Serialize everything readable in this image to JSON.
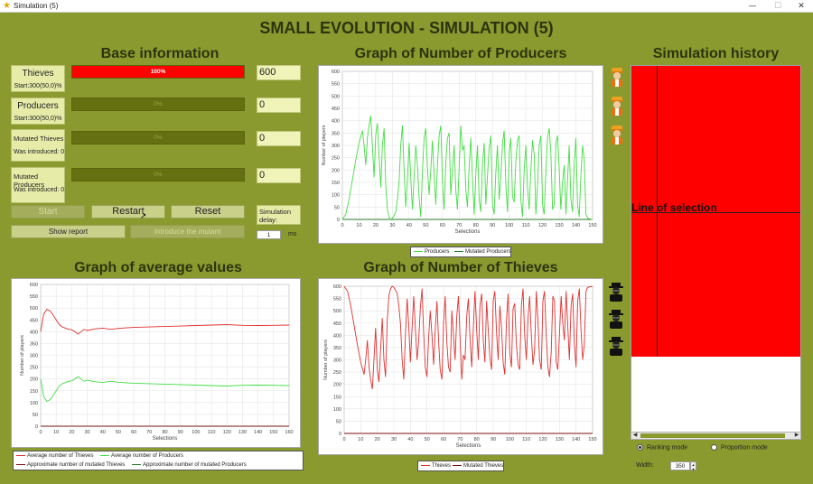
{
  "window": {
    "title": "Simulation (5)",
    "minimize": "—",
    "maximize": "☐",
    "close": "✕"
  },
  "main_title": "SMALL EVOLUTION - SIMULATION (5)",
  "base_info": {
    "title": "Base information",
    "rows": [
      {
        "label": "Thieves",
        "sub": "Start:300(50,0)%",
        "percent_text": "100%",
        "fill": 1.0,
        "value": "600"
      },
      {
        "label": "Producers",
        "sub": "Start:300(50,0)%",
        "percent_text": "0%",
        "fill": 0,
        "value": "0"
      },
      {
        "label": "Mutated Thieves",
        "sub": "Was introduced: 0",
        "percent_text": "0%",
        "fill": 0,
        "value": "0"
      },
      {
        "label": "Mutated Producers",
        "sub": "Was introduced: 0",
        "percent_text": "0%",
        "fill": 0,
        "value": "0"
      }
    ]
  },
  "controls": {
    "start": "Start",
    "restart": "Restart",
    "reset": "Reset",
    "show_report": "Show report",
    "introduce_mutant": "Introduce the mutant",
    "delay_label_1": "Simulation",
    "delay_label_2": "delay:",
    "delay_value": "1",
    "delay_unit": "ms"
  },
  "history": {
    "title": "Simulation history",
    "selection_label": "Line of selection",
    "ranking_mode": "Ranking mode",
    "proportion_mode": "Proportion mode",
    "width_label": "Width:",
    "width_value": "350"
  },
  "colors": {
    "thieves": "#e03030",
    "producers": "#44dd44",
    "history_fill": "#ff0000"
  },
  "icons": {
    "producer": "producer-icon",
    "thief": "thief-icon"
  },
  "chart_data": [
    {
      "id": "producers",
      "type": "line",
      "title": "Graph of Number of Producers",
      "xlabel": "Selections",
      "ylabel": "Number of players",
      "xlim": [
        0,
        150
      ],
      "ylim": [
        0,
        600
      ],
      "xticks": [
        "0",
        "10",
        "20",
        "30",
        "40",
        "50",
        "60",
        "70",
        "80",
        "90",
        "100",
        "110",
        "120",
        "130",
        "140",
        "150"
      ],
      "yticks": [
        "0",
        "50",
        "100",
        "150",
        "200",
        "250",
        "300",
        "350",
        "400",
        "450",
        "500",
        "550",
        "600"
      ],
      "series": [
        {
          "name": "Producers",
          "color": "#44dd44",
          "x": [
            0,
            2,
            4,
            6,
            8,
            10,
            12,
            13,
            14,
            15,
            16,
            17,
            18,
            19,
            20,
            21,
            22,
            23,
            24,
            25,
            26,
            27,
            28,
            29,
            30,
            31,
            32,
            33,
            34,
            35,
            36,
            37,
            38,
            39,
            40,
            41,
            42,
            43,
            44,
            45,
            46,
            47,
            48,
            49,
            50,
            51,
            52,
            53,
            54,
            55,
            56,
            57,
            58,
            59,
            60,
            61,
            62,
            63,
            64,
            65,
            66,
            67,
            68,
            69,
            70,
            71,
            72,
            73,
            74,
            75,
            76,
            77,
            78,
            79,
            80,
            81,
            82,
            83,
            84,
            85,
            86,
            87,
            88,
            89,
            90,
            91,
            92,
            93,
            94,
            95,
            96,
            97,
            98,
            99,
            100,
            101,
            102,
            103,
            104,
            105,
            106,
            107,
            108,
            109,
            110,
            111,
            112,
            113,
            114,
            115,
            116,
            117,
            118,
            119,
            120,
            121,
            122,
            123,
            124,
            125,
            126,
            127,
            128,
            129,
            130,
            131,
            132,
            133,
            134,
            135,
            136,
            137,
            138,
            139,
            140,
            141,
            142,
            143,
            144,
            145,
            146,
            147,
            148,
            149,
            150
          ],
          "y": [
            0,
            20,
            80,
            160,
            240,
            310,
            360,
            300,
            220,
            330,
            380,
            420,
            300,
            170,
            340,
            390,
            260,
            130,
            300,
            370,
            140,
            40,
            10,
            0,
            5,
            15,
            30,
            80,
            150,
            300,
            380,
            200,
            50,
            160,
            310,
            170,
            40,
            170,
            300,
            220,
            90,
            10,
            190,
            330,
            370,
            210,
            100,
            200,
            320,
            180,
            60,
            220,
            340,
            380,
            150,
            40,
            230,
            330,
            350,
            100,
            200,
            300,
            120,
            40,
            210,
            380,
            280,
            300,
            120,
            50,
            210,
            330,
            170,
            20,
            180,
            300,
            80,
            30,
            220,
            310,
            60,
            180,
            290,
            340,
            60,
            20,
            190,
            300,
            80,
            170,
            310,
            360,
            140,
            30,
            270,
            330,
            90,
            70,
            240,
            320,
            340,
            80,
            10,
            200,
            300,
            130,
            40,
            200,
            320,
            260,
            20,
            140,
            300,
            340,
            60,
            20,
            200,
            330,
            370,
            270,
            40,
            60,
            310,
            340,
            200,
            40,
            150,
            220,
            20,
            160,
            300,
            80,
            30,
            230,
            330,
            60,
            10,
            180,
            300,
            240,
            20,
            5,
            3,
            1,
            0
          ]
        },
        {
          "name": "Mutated Producers",
          "color": "#2a7a2a",
          "x": [
            0,
            150
          ],
          "y": [
            0,
            0
          ]
        }
      ]
    },
    {
      "id": "averages",
      "type": "line",
      "title": "Graph of average values",
      "xlabel": "Selections",
      "ylabel": "Number of players",
      "xlim": [
        0,
        160
      ],
      "ylim": [
        0,
        600
      ],
      "xticks": [
        "0",
        "10",
        "20",
        "30",
        "40",
        "50",
        "60",
        "70",
        "80",
        "90",
        "100",
        "110",
        "120",
        "130",
        "140",
        "150",
        "160"
      ],
      "yticks": [
        "0",
        "50",
        "100",
        "150",
        "200",
        "250",
        "300",
        "350",
        "400",
        "450",
        "500",
        "550",
        "600"
      ],
      "series": [
        {
          "name": "Average number of Thieves",
          "color": "#e03030",
          "x": [
            0,
            2,
            4,
            6,
            8,
            10,
            12,
            14,
            16,
            18,
            20,
            22,
            24,
            26,
            28,
            30,
            35,
            40,
            45,
            50,
            55,
            60,
            70,
            80,
            90,
            100,
            110,
            120,
            130,
            140,
            150,
            160
          ],
          "y": [
            400,
            475,
            495,
            488,
            470,
            450,
            430,
            420,
            415,
            410,
            408,
            400,
            390,
            400,
            410,
            405,
            412,
            415,
            410,
            414,
            416,
            418,
            420,
            422,
            424,
            426,
            428,
            430,
            427,
            426,
            427,
            428
          ]
        },
        {
          "name": "Average number of Producers",
          "color": "#44dd44",
          "x": [
            0,
            2,
            4,
            6,
            8,
            10,
            12,
            14,
            16,
            18,
            20,
            22,
            24,
            26,
            28,
            30,
            35,
            40,
            45,
            50,
            55,
            60,
            70,
            80,
            90,
            100,
            110,
            120,
            130,
            140,
            150,
            160
          ],
          "y": [
            200,
            125,
            105,
            112,
            130,
            150,
            170,
            180,
            185,
            190,
            192,
            200,
            210,
            200,
            190,
            195,
            188,
            185,
            190,
            186,
            184,
            182,
            180,
            178,
            176,
            174,
            172,
            170,
            173,
            174,
            173,
            172
          ]
        },
        {
          "name": "Approximate number of mutated Thieves",
          "color": "#7a1010",
          "x": [
            0,
            160
          ],
          "y": [
            0,
            0
          ]
        },
        {
          "name": "Approximate number of mutated Producers",
          "color": "#2a7a2a",
          "x": [
            0,
            160
          ],
          "y": [
            0,
            0
          ]
        }
      ]
    },
    {
      "id": "thieves",
      "type": "line",
      "title": "Graph of Number of Thieves",
      "xlabel": "Selections",
      "ylabel": "Number of players",
      "xlim": [
        0,
        150
      ],
      "ylim": [
        0,
        600
      ],
      "xticks": [
        "0",
        "10",
        "20",
        "30",
        "40",
        "50",
        "60",
        "70",
        "80",
        "90",
        "100",
        "110",
        "120",
        "130",
        "140",
        "150"
      ],
      "yticks": [
        "0",
        "50",
        "100",
        "150",
        "200",
        "250",
        "300",
        "350",
        "400",
        "450",
        "500",
        "550",
        "600"
      ],
      "series": [
        {
          "name": "Thieves",
          "color": "#e03030",
          "x": [
            0,
            2,
            4,
            6,
            8,
            10,
            12,
            13,
            14,
            15,
            16,
            17,
            18,
            19,
            20,
            21,
            22,
            23,
            24,
            25,
            26,
            27,
            28,
            29,
            30,
            31,
            32,
            33,
            34,
            35,
            36,
            37,
            38,
            39,
            40,
            41,
            42,
            43,
            44,
            45,
            46,
            47,
            48,
            49,
            50,
            51,
            52,
            53,
            54,
            55,
            56,
            57,
            58,
            59,
            60,
            61,
            62,
            63,
            64,
            65,
            66,
            67,
            68,
            69,
            70,
            71,
            72,
            73,
            74,
            75,
            76,
            77,
            78,
            79,
            80,
            81,
            82,
            83,
            84,
            85,
            86,
            87,
            88,
            89,
            90,
            91,
            92,
            93,
            94,
            95,
            96,
            97,
            98,
            99,
            100,
            101,
            102,
            103,
            104,
            105,
            106,
            107,
            108,
            109,
            110,
            111,
            112,
            113,
            114,
            115,
            116,
            117,
            118,
            119,
            120,
            121,
            122,
            123,
            124,
            125,
            126,
            127,
            128,
            129,
            130,
            131,
            132,
            133,
            134,
            135,
            136,
            137,
            138,
            139,
            140,
            141,
            142,
            143,
            144,
            145,
            146,
            147,
            148,
            149,
            150
          ],
          "y": [
            600,
            580,
            520,
            440,
            360,
            290,
            240,
            300,
            380,
            270,
            220,
            180,
            300,
            430,
            260,
            210,
            340,
            470,
            300,
            230,
            460,
            560,
            590,
            600,
            595,
            585,
            570,
            520,
            450,
            300,
            220,
            400,
            550,
            440,
            290,
            430,
            560,
            430,
            300,
            380,
            510,
            590,
            410,
            270,
            230,
            390,
            500,
            400,
            280,
            420,
            540,
            380,
            260,
            220,
            450,
            560,
            370,
            270,
            250,
            500,
            400,
            300,
            480,
            560,
            390,
            220,
            320,
            300,
            480,
            550,
            390,
            270,
            430,
            580,
            420,
            300,
            520,
            570,
            380,
            290,
            540,
            420,
            310,
            260,
            540,
            580,
            410,
            300,
            520,
            430,
            290,
            240,
            460,
            570,
            330,
            270,
            510,
            530,
            360,
            280,
            260,
            520,
            590,
            400,
            300,
            470,
            560,
            400,
            280,
            340,
            580,
            460,
            300,
            260,
            540,
            580,
            400,
            270,
            230,
            330,
            560,
            540,
            290,
            260,
            400,
            560,
            450,
            380,
            580,
            440,
            300,
            520,
            570,
            370,
            270,
            540,
            590,
            420,
            300,
            360,
            580,
            595,
            597,
            599,
            600
          ]
        },
        {
          "name": "Mutated Thieves",
          "color": "#7a1010",
          "x": [
            0,
            150
          ],
          "y": [
            0,
            0
          ]
        }
      ]
    }
  ]
}
